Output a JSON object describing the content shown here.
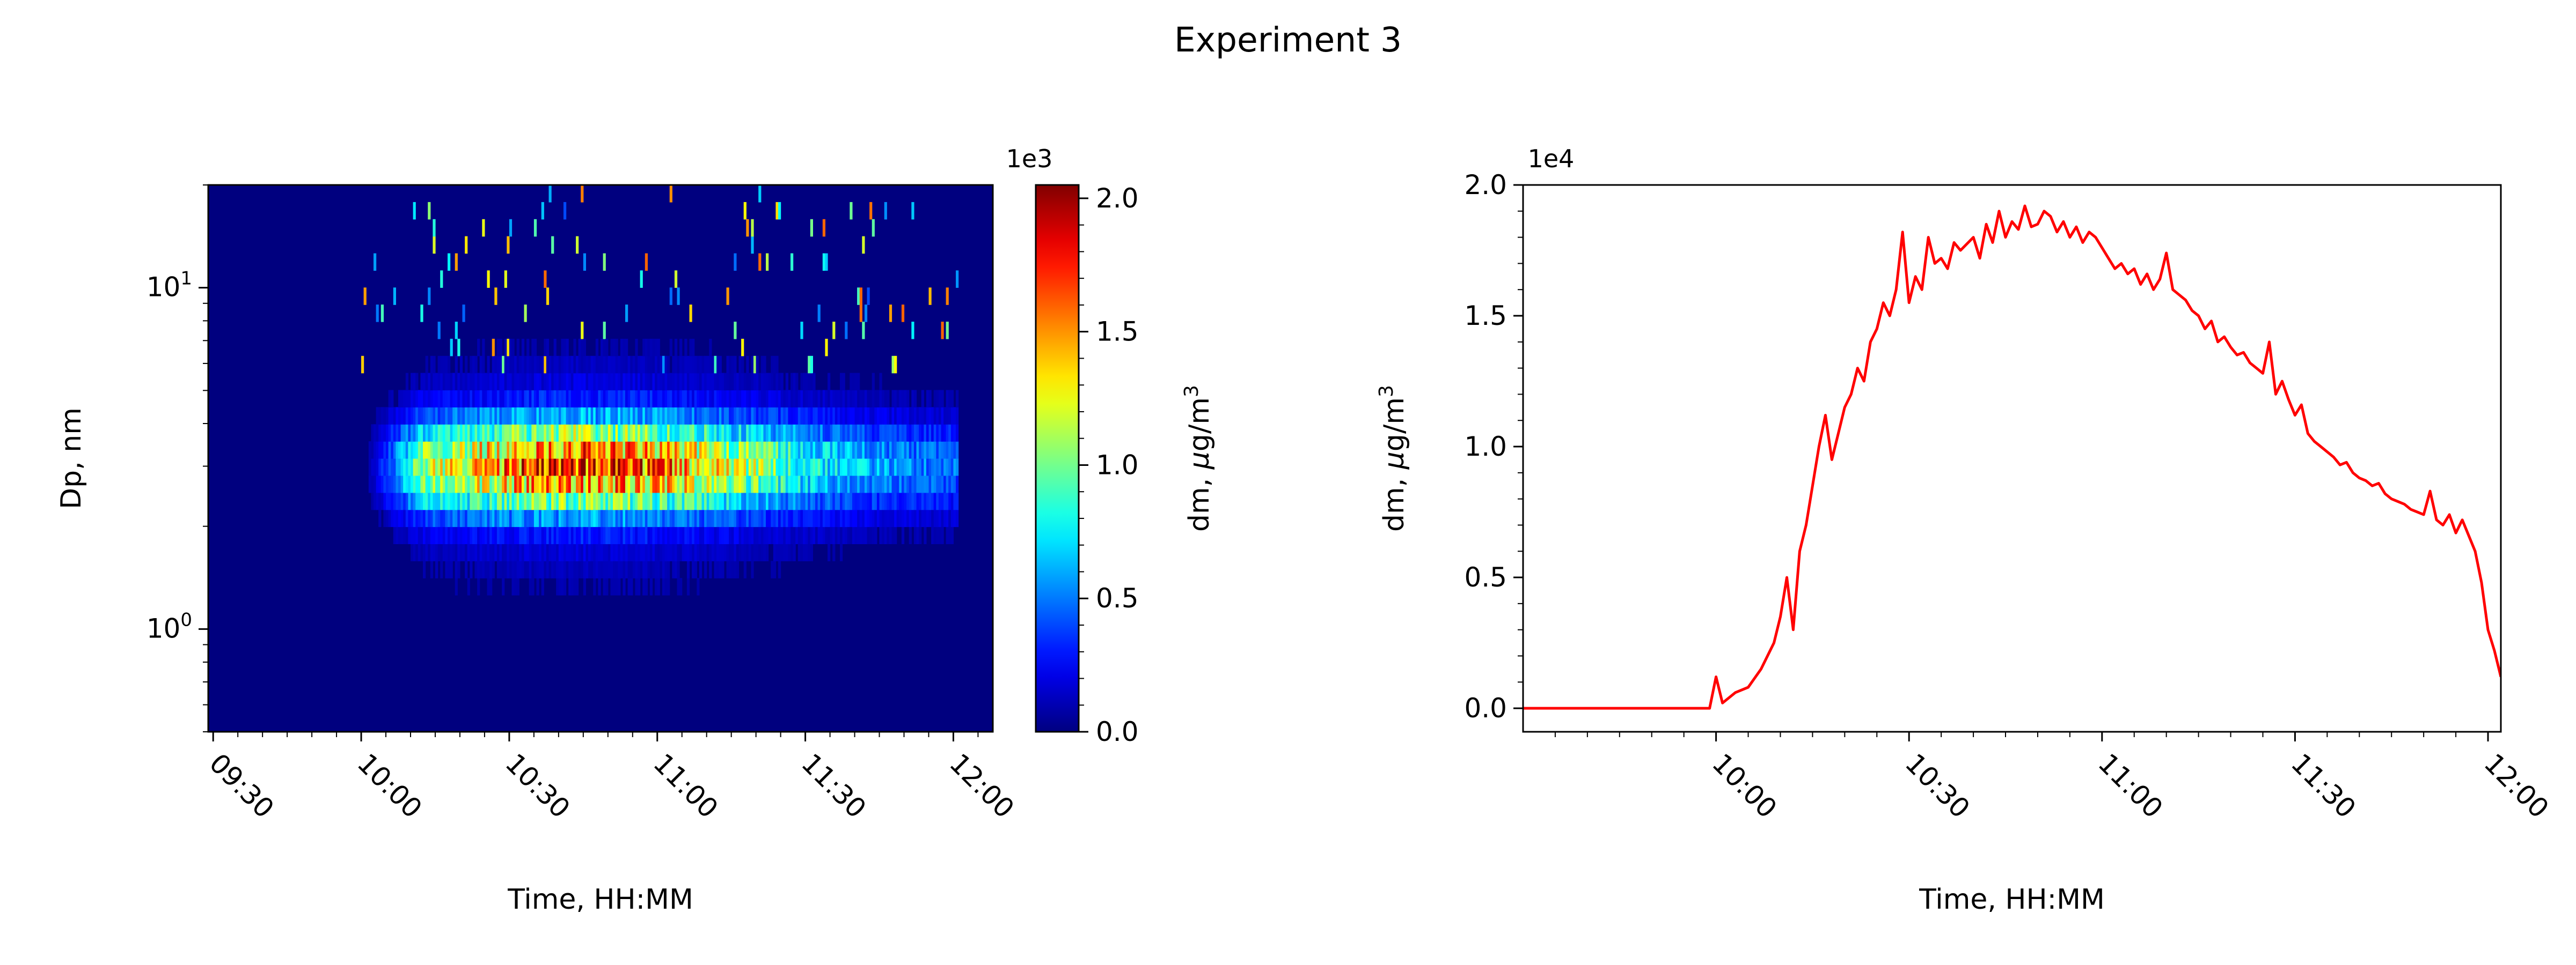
{
  "figure": {
    "title": "Experiment 3"
  },
  "chart_data": [
    {
      "type": "heatmap",
      "xlabel": "Time, HH:MM",
      "ylabel": "Dp, nm",
      "x_tick_labels": [
        "09:30",
        "10:00",
        "10:30",
        "11:00",
        "11:30",
        "12:00"
      ],
      "x_ticks_minutes": [
        570,
        600,
        630,
        660,
        690,
        720
      ],
      "xlim_minutes": [
        569,
        728
      ],
      "y_scale": "log",
      "ylim": [
        0.5,
        20
      ],
      "y_tick_labels": [
        {
          "base": "10",
          "exp": "0",
          "value": 1
        },
        {
          "base": "10",
          "exp": "1",
          "value": 10
        }
      ],
      "colormap": "jet",
      "colorbar": {
        "label_prefix": "dm, ",
        "label_mu": "μ",
        "label_unit": "g/m",
        "label_sup": "3",
        "multiplier": "1e3",
        "range": [
          0,
          2.05
        ],
        "tick_values": [
          0.0,
          0.5,
          1.0,
          1.5,
          2.0
        ],
        "tick_labels": [
          "0.0",
          "0.5",
          "1.0",
          "1.5",
          "2.0"
        ]
      },
      "mode_peak_dp_nm": 3.0,
      "mode_peak_value_e3": 1.45,
      "event_start_time": "10:00",
      "event_end_time": "12:00",
      "peak_time": "10:45"
    },
    {
      "type": "line",
      "xlabel": "Time, HH:MM",
      "ylabel_prefix": "dm, ",
      "ylabel_mu": "μ",
      "ylabel_unit": "g/m",
      "ylabel_sup": "3",
      "multiplier": "1e4",
      "x_tick_labels": [
        "10:00",
        "10:30",
        "11:00",
        "11:30",
        "12:00"
      ],
      "x_ticks_minutes": [
        600,
        630,
        660,
        690,
        720
      ],
      "xlim_minutes": [
        570,
        722
      ],
      "ylim": [
        -0.09,
        2.0
      ],
      "y_tick_values": [
        0.0,
        0.5,
        1.0,
        1.5,
        2.0
      ],
      "y_tick_labels": [
        "0.0",
        "0.5",
        "1.0",
        "1.5",
        "2.0"
      ],
      "series": [
        {
          "color": "#ff0000",
          "x_minutes": [
            570,
            580,
            590,
            599,
            600,
            601,
            602,
            603,
            605,
            607,
            609,
            610,
            611,
            612,
            613,
            614,
            615,
            616,
            617,
            618,
            619,
            620,
            621,
            622,
            623,
            624,
            625,
            626,
            627,
            628,
            629,
            630,
            631,
            632,
            633,
            634,
            635,
            636,
            637,
            638,
            640,
            641,
            642,
            643,
            644,
            645,
            646,
            647,
            648,
            649,
            650,
            651,
            652,
            653,
            654,
            655,
            656,
            657,
            658,
            659,
            660,
            661,
            662,
            663,
            664,
            665,
            666,
            667,
            668,
            669,
            670,
            671,
            672,
            673,
            674,
            675,
            676,
            677,
            678,
            679,
            680,
            681,
            682,
            683,
            684,
            685,
            686,
            687,
            688,
            689,
            690,
            691,
            692,
            693,
            694,
            695,
            696,
            697,
            698,
            699,
            700,
            701,
            702,
            703,
            704,
            705,
            706,
            707,
            708,
            709,
            710,
            711,
            712,
            713,
            714,
            715,
            716,
            717,
            718,
            719,
            720,
            721,
            722
          ],
          "y_e4": [
            0.0,
            0.0,
            0.0,
            0.0,
            0.12,
            0.02,
            0.04,
            0.06,
            0.08,
            0.15,
            0.25,
            0.35,
            0.5,
            0.3,
            0.6,
            0.7,
            0.85,
            1.0,
            1.12,
            0.95,
            1.05,
            1.15,
            1.2,
            1.3,
            1.25,
            1.4,
            1.45,
            1.55,
            1.5,
            1.6,
            1.82,
            1.55,
            1.65,
            1.6,
            1.8,
            1.7,
            1.72,
            1.68,
            1.78,
            1.75,
            1.8,
            1.72,
            1.85,
            1.78,
            1.9,
            1.8,
            1.86,
            1.83,
            1.92,
            1.84,
            1.85,
            1.9,
            1.88,
            1.82,
            1.86,
            1.8,
            1.84,
            1.78,
            1.82,
            1.8,
            1.76,
            1.72,
            1.68,
            1.7,
            1.66,
            1.68,
            1.62,
            1.66,
            1.6,
            1.64,
            1.74,
            1.6,
            1.58,
            1.56,
            1.52,
            1.5,
            1.45,
            1.48,
            1.4,
            1.42,
            1.38,
            1.35,
            1.36,
            1.32,
            1.3,
            1.28,
            1.4,
            1.2,
            1.25,
            1.18,
            1.12,
            1.16,
            1.05,
            1.02,
            1.0,
            0.98,
            0.96,
            0.93,
            0.94,
            0.9,
            0.88,
            0.87,
            0.85,
            0.86,
            0.82,
            0.8,
            0.79,
            0.78,
            0.76,
            0.75,
            0.74,
            0.83,
            0.72,
            0.7,
            0.74,
            0.67,
            0.72,
            0.66,
            0.6,
            0.48,
            0.3,
            0.22,
            0.12
          ]
        }
      ]
    }
  ]
}
